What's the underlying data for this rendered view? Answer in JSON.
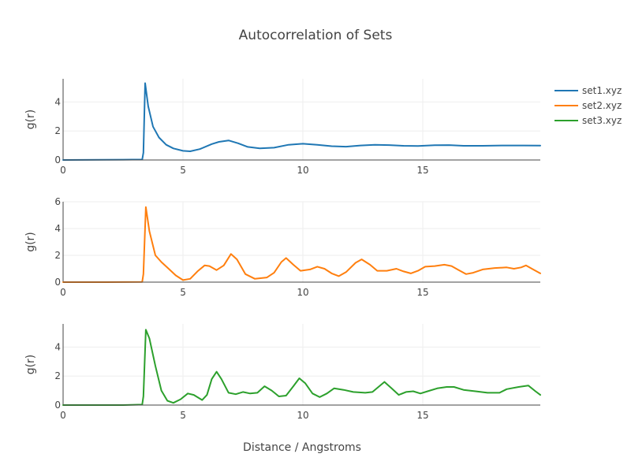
{
  "chart_data": {
    "type": "line",
    "title": "Autocorrelation of Sets",
    "xlabel": "Distance / Angstroms",
    "ylabel": "g(r)",
    "xlim": [
      0,
      19.9
    ],
    "x_ticks": [
      0,
      5,
      10,
      15
    ],
    "grid": true,
    "legend_position": "top-right",
    "subplots": [
      {
        "series_name": "set1.xyz",
        "color": "#1f77b4",
        "ylim": [
          0,
          5.6
        ],
        "y_ticks": [
          0,
          2,
          4
        ],
        "points": [
          [
            0,
            0.0
          ],
          [
            2.5,
            0.02
          ],
          [
            3.3,
            0.03
          ],
          [
            3.35,
            0.5
          ],
          [
            3.42,
            5.3
          ],
          [
            3.55,
            3.7
          ],
          [
            3.75,
            2.3
          ],
          [
            4.0,
            1.55
          ],
          [
            4.3,
            1.05
          ],
          [
            4.6,
            0.8
          ],
          [
            5.0,
            0.63
          ],
          [
            5.3,
            0.6
          ],
          [
            5.7,
            0.75
          ],
          [
            6.2,
            1.1
          ],
          [
            6.5,
            1.25
          ],
          [
            6.9,
            1.35
          ],
          [
            7.3,
            1.15
          ],
          [
            7.7,
            0.9
          ],
          [
            8.2,
            0.8
          ],
          [
            8.8,
            0.85
          ],
          [
            9.4,
            1.05
          ],
          [
            10.0,
            1.12
          ],
          [
            10.6,
            1.05
          ],
          [
            11.2,
            0.95
          ],
          [
            11.8,
            0.92
          ],
          [
            12.4,
            1.0
          ],
          [
            13.0,
            1.05
          ],
          [
            13.6,
            1.03
          ],
          [
            14.2,
            0.98
          ],
          [
            14.8,
            0.97
          ],
          [
            15.5,
            1.02
          ],
          [
            16.1,
            1.03
          ],
          [
            16.7,
            0.98
          ],
          [
            17.5,
            0.98
          ],
          [
            18.3,
            1.0
          ],
          [
            19.2,
            1.0
          ],
          [
            19.9,
            0.99
          ]
        ]
      },
      {
        "series_name": "set2.xyz",
        "color": "#ff7f0e",
        "ylim": [
          0,
          6
        ],
        "y_ticks": [
          0,
          2,
          4,
          6
        ],
        "points": [
          [
            0,
            0.0
          ],
          [
            1.8,
            0.0
          ],
          [
            3.3,
            0.02
          ],
          [
            3.35,
            0.6
          ],
          [
            3.45,
            5.6
          ],
          [
            3.6,
            3.8
          ],
          [
            3.85,
            2.0
          ],
          [
            4.1,
            1.5
          ],
          [
            4.4,
            1.0
          ],
          [
            4.7,
            0.5
          ],
          [
            5.0,
            0.15
          ],
          [
            5.3,
            0.25
          ],
          [
            5.6,
            0.8
          ],
          [
            5.9,
            1.25
          ],
          [
            6.1,
            1.2
          ],
          [
            6.4,
            0.9
          ],
          [
            6.7,
            1.25
          ],
          [
            7.0,
            2.1
          ],
          [
            7.25,
            1.7
          ],
          [
            7.6,
            0.6
          ],
          [
            8.0,
            0.25
          ],
          [
            8.5,
            0.35
          ],
          [
            8.8,
            0.7
          ],
          [
            9.1,
            1.5
          ],
          [
            9.3,
            1.8
          ],
          [
            9.6,
            1.3
          ],
          [
            9.9,
            0.85
          ],
          [
            10.3,
            0.95
          ],
          [
            10.6,
            1.15
          ],
          [
            10.9,
            1.0
          ],
          [
            11.2,
            0.65
          ],
          [
            11.5,
            0.45
          ],
          [
            11.8,
            0.75
          ],
          [
            12.2,
            1.45
          ],
          [
            12.45,
            1.7
          ],
          [
            12.8,
            1.3
          ],
          [
            13.1,
            0.85
          ],
          [
            13.5,
            0.85
          ],
          [
            13.9,
            1.0
          ],
          [
            14.2,
            0.8
          ],
          [
            14.5,
            0.65
          ],
          [
            14.8,
            0.85
          ],
          [
            15.1,
            1.15
          ],
          [
            15.5,
            1.2
          ],
          [
            15.9,
            1.3
          ],
          [
            16.2,
            1.2
          ],
          [
            16.5,
            0.9
          ],
          [
            16.8,
            0.6
          ],
          [
            17.1,
            0.7
          ],
          [
            17.5,
            0.95
          ],
          [
            18.0,
            1.05
          ],
          [
            18.5,
            1.1
          ],
          [
            18.8,
            1.0
          ],
          [
            19.1,
            1.1
          ],
          [
            19.3,
            1.25
          ],
          [
            19.6,
            0.95
          ],
          [
            19.9,
            0.65
          ]
        ]
      },
      {
        "series_name": "set3.xyz",
        "color": "#2ca02c",
        "ylim": [
          0,
          5.6
        ],
        "y_ticks": [
          0,
          2,
          4
        ],
        "points": [
          [
            0,
            0.0
          ],
          [
            2.5,
            0.0
          ],
          [
            3.3,
            0.03
          ],
          [
            3.35,
            0.6
          ],
          [
            3.45,
            5.2
          ],
          [
            3.6,
            4.6
          ],
          [
            3.85,
            2.7
          ],
          [
            4.1,
            1.0
          ],
          [
            4.35,
            0.3
          ],
          [
            4.6,
            0.15
          ],
          [
            4.9,
            0.4
          ],
          [
            5.2,
            0.8
          ],
          [
            5.45,
            0.7
          ],
          [
            5.8,
            0.35
          ],
          [
            6.0,
            0.7
          ],
          [
            6.2,
            1.8
          ],
          [
            6.4,
            2.3
          ],
          [
            6.6,
            1.8
          ],
          [
            6.9,
            0.85
          ],
          [
            7.2,
            0.75
          ],
          [
            7.5,
            0.9
          ],
          [
            7.8,
            0.8
          ],
          [
            8.1,
            0.85
          ],
          [
            8.4,
            1.3
          ],
          [
            8.7,
            1.0
          ],
          [
            9.0,
            0.6
          ],
          [
            9.3,
            0.65
          ],
          [
            9.6,
            1.3
          ],
          [
            9.85,
            1.85
          ],
          [
            10.1,
            1.5
          ],
          [
            10.4,
            0.8
          ],
          [
            10.7,
            0.55
          ],
          [
            11.0,
            0.8
          ],
          [
            11.3,
            1.15
          ],
          [
            11.7,
            1.05
          ],
          [
            12.1,
            0.9
          ],
          [
            12.6,
            0.85
          ],
          [
            12.9,
            0.9
          ],
          [
            13.15,
            1.25
          ],
          [
            13.4,
            1.6
          ],
          [
            13.7,
            1.15
          ],
          [
            14.0,
            0.7
          ],
          [
            14.3,
            0.9
          ],
          [
            14.6,
            0.95
          ],
          [
            14.9,
            0.8
          ],
          [
            15.2,
            0.95
          ],
          [
            15.6,
            1.15
          ],
          [
            16.0,
            1.25
          ],
          [
            16.3,
            1.25
          ],
          [
            16.7,
            1.05
          ],
          [
            17.2,
            0.95
          ],
          [
            17.7,
            0.85
          ],
          [
            18.2,
            0.85
          ],
          [
            18.5,
            1.1
          ],
          [
            19.0,
            1.25
          ],
          [
            19.4,
            1.35
          ],
          [
            19.7,
            0.95
          ],
          [
            19.9,
            0.7
          ]
        ]
      }
    ]
  }
}
